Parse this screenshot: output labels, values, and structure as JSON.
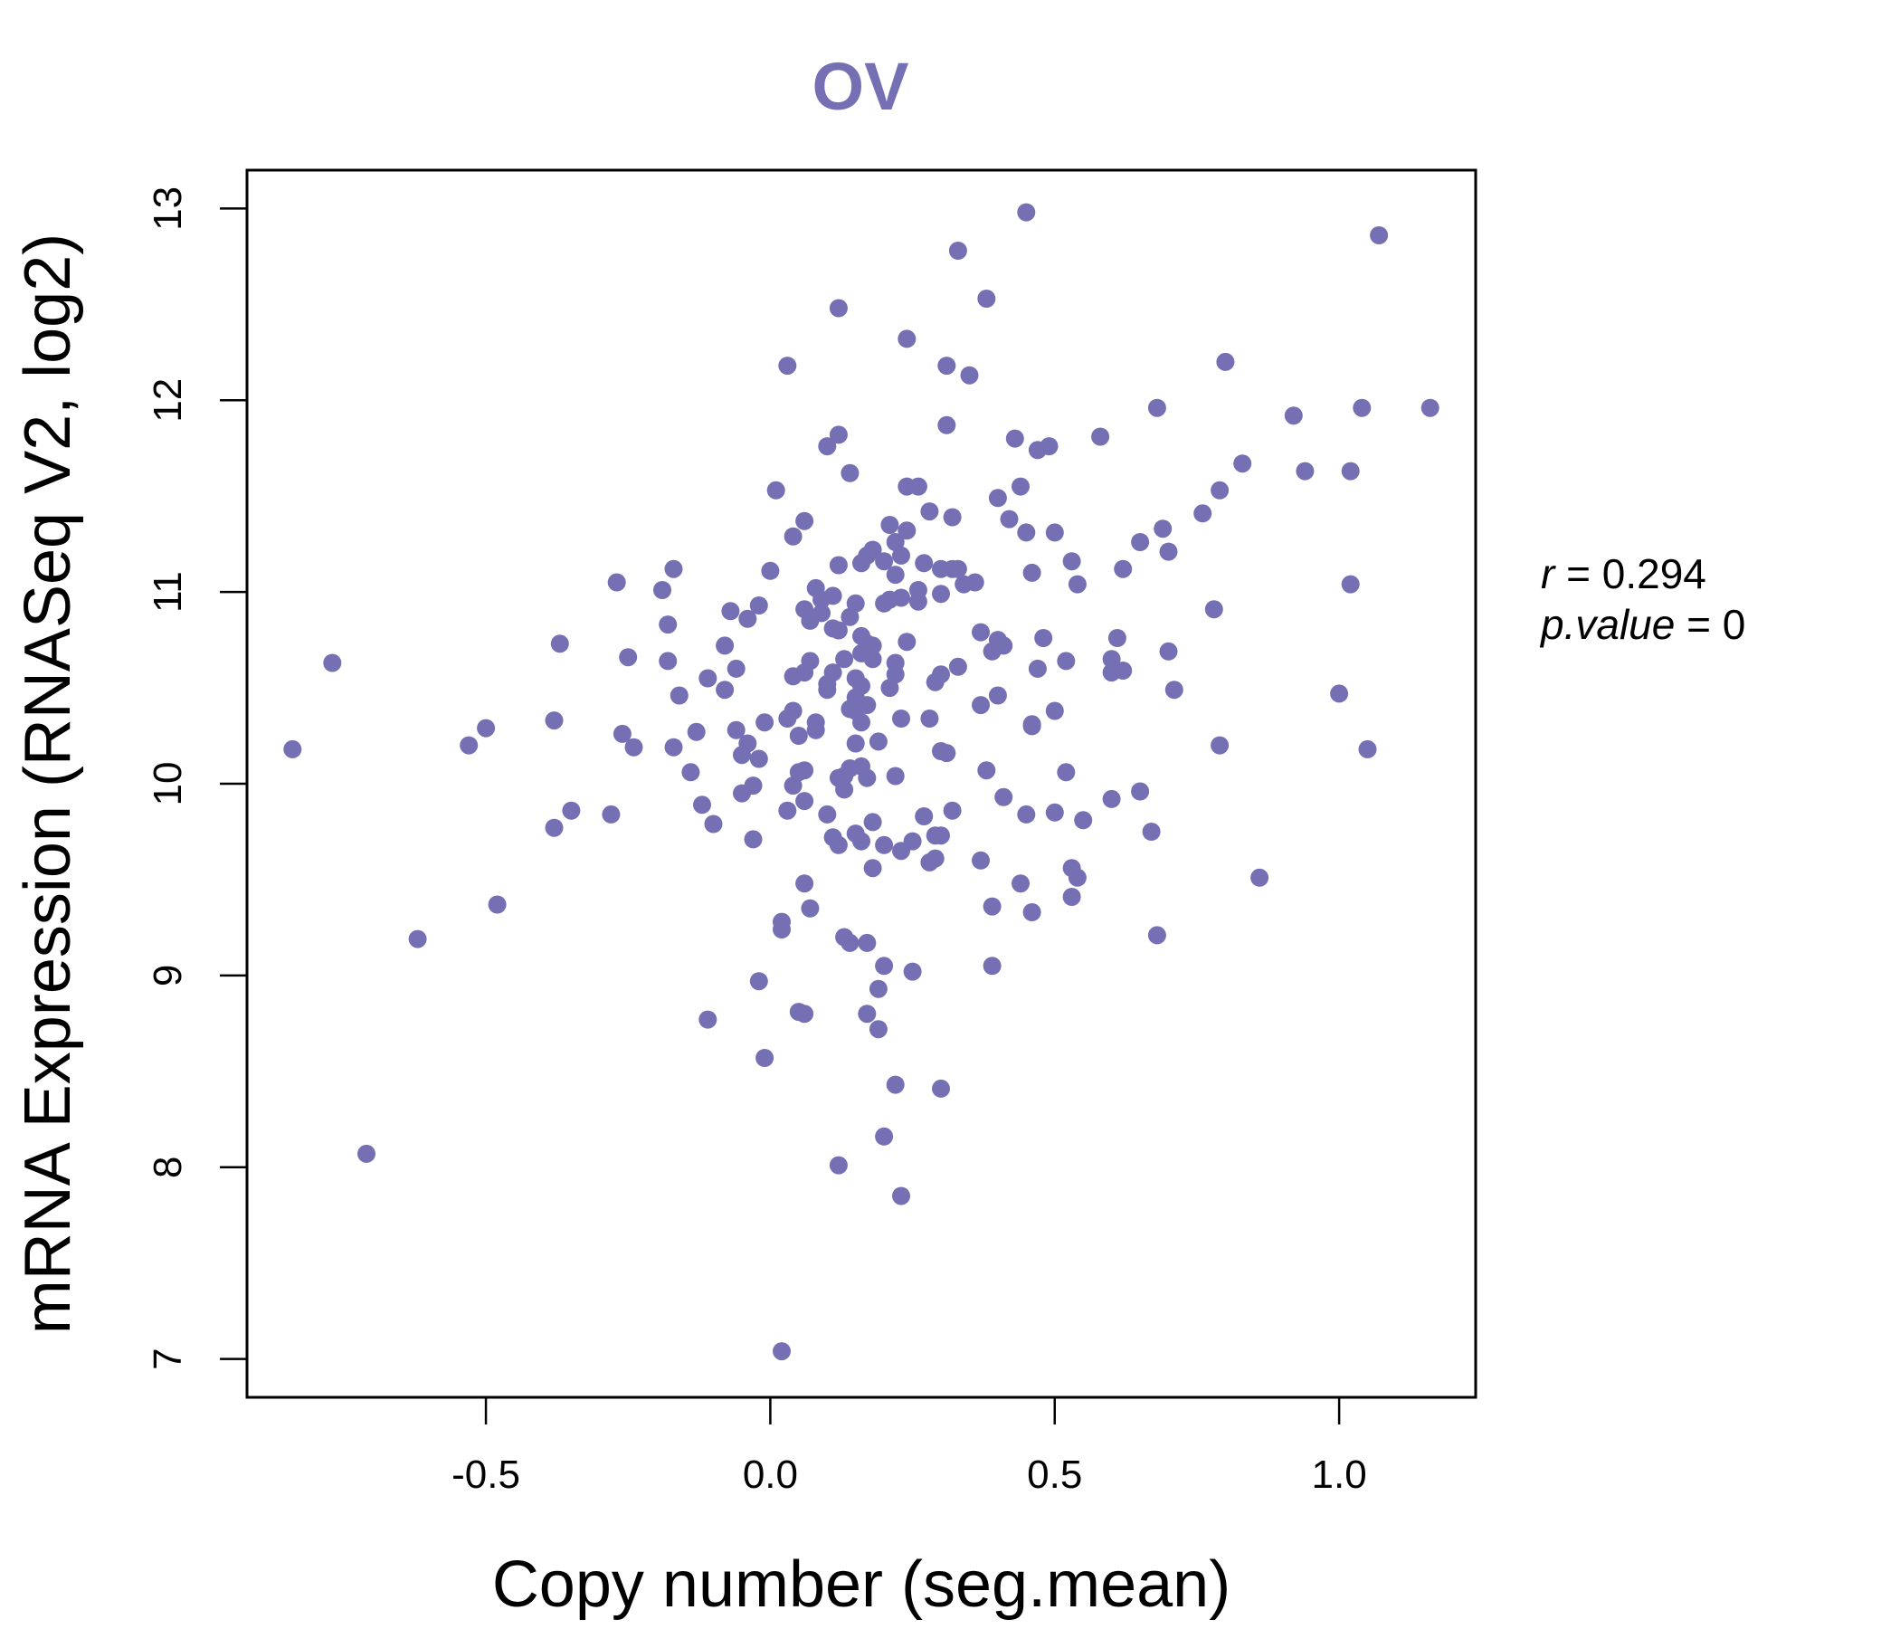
{
  "colors": {
    "point": "#7570b3",
    "title": "#7570b3",
    "axis": "#000000"
  },
  "stats": {
    "r_symbol": "r",
    "r_eq": " = ",
    "r_value": "0.294",
    "p_symbol": "p.value",
    "p_eq": " = ",
    "p_value": "0"
  },
  "chart_data": {
    "type": "scatter",
    "title": "OV",
    "xlabel": "Copy number (seg.mean)",
    "ylabel": "mRNA Expression (RNASeq V2, log2)",
    "xlim": [
      -0.92,
      1.24
    ],
    "ylim": [
      6.8,
      13.2
    ],
    "xticks": [
      -0.5,
      0.0,
      0.5,
      1.0
    ],
    "xtick_labels": [
      "-0.5",
      "0.0",
      "0.5",
      "1.0"
    ],
    "yticks": [
      7,
      8,
      9,
      10,
      11,
      12,
      13
    ],
    "ytick_labels": [
      "7",
      "8",
      "9",
      "10",
      "11",
      "12",
      "13"
    ],
    "grid": false,
    "points": [
      [
        -0.84,
        10.18
      ],
      [
        -0.77,
        10.63
      ],
      [
        -0.71,
        8.07
      ],
      [
        -0.62,
        9.19
      ],
      [
        -0.53,
        10.2
      ],
      [
        -0.5,
        10.29
      ],
      [
        -0.48,
        9.37
      ],
      [
        -0.38,
        10.33
      ],
      [
        -0.37,
        10.73
      ],
      [
        -0.38,
        9.77
      ],
      [
        -0.35,
        9.86
      ],
      [
        -0.28,
        9.84
      ],
      [
        -0.27,
        11.05
      ],
      [
        -0.26,
        10.26
      ],
      [
        -0.25,
        10.66
      ],
      [
        -0.24,
        10.19
      ],
      [
        -0.19,
        11.01
      ],
      [
        -0.18,
        10.64
      ],
      [
        -0.18,
        10.83
      ],
      [
        -0.17,
        11.12
      ],
      [
        -0.17,
        10.19
      ],
      [
        -0.16,
        10.46
      ],
      [
        -0.14,
        10.06
      ],
      [
        -0.13,
        10.27
      ],
      [
        -0.12,
        9.89
      ],
      [
        -0.11,
        8.77
      ],
      [
        -0.11,
        10.55
      ],
      [
        -0.1,
        9.79
      ],
      [
        -0.08,
        10.49
      ],
      [
        -0.08,
        10.72
      ],
      [
        -0.07,
        10.9
      ],
      [
        -0.06,
        10.6
      ],
      [
        -0.06,
        10.28
      ],
      [
        -0.05,
        10.15
      ],
      [
        -0.05,
        9.95
      ],
      [
        -0.04,
        10.86
      ],
      [
        -0.04,
        10.21
      ],
      [
        -0.03,
        9.71
      ],
      [
        -0.03,
        9.99
      ],
      [
        -0.02,
        10.13
      ],
      [
        -0.02,
        10.93
      ],
      [
        -0.02,
        8.97
      ],
      [
        -0.01,
        10.32
      ],
      [
        -0.01,
        8.57
      ],
      [
        0.0,
        11.11
      ],
      [
        0.01,
        11.53
      ],
      [
        0.02,
        9.28
      ],
      [
        0.02,
        9.24
      ],
      [
        0.02,
        7.04
      ],
      [
        0.03,
        10.34
      ],
      [
        0.03,
        12.18
      ],
      [
        0.03,
        9.86
      ],
      [
        0.04,
        10.38
      ],
      [
        0.04,
        9.99
      ],
      [
        0.04,
        11.29
      ],
      [
        0.04,
        10.56
      ],
      [
        0.05,
        10.25
      ],
      [
        0.05,
        10.06
      ],
      [
        0.05,
        8.81
      ],
      [
        0.06,
        10.07
      ],
      [
        0.06,
        11.37
      ],
      [
        0.06,
        10.91
      ],
      [
        0.06,
        10.58
      ],
      [
        0.06,
        9.48
      ],
      [
        0.06,
        9.91
      ],
      [
        0.06,
        8.8
      ],
      [
        0.07,
        9.35
      ],
      [
        0.07,
        10.85
      ],
      [
        0.07,
        10.64
      ],
      [
        0.08,
        10.28
      ],
      [
        0.08,
        11.02
      ],
      [
        0.08,
        10.32
      ],
      [
        0.09,
        10.89
      ],
      [
        0.09,
        10.96
      ],
      [
        0.1,
        10.49
      ],
      [
        0.1,
        10.52
      ],
      [
        0.1,
        9.84
      ],
      [
        0.1,
        11.76
      ],
      [
        0.11,
        9.72
      ],
      [
        0.11,
        10.58
      ],
      [
        0.11,
        10.98
      ],
      [
        0.11,
        10.81
      ],
      [
        0.12,
        9.68
      ],
      [
        0.12,
        10.03
      ],
      [
        0.12,
        10.8
      ],
      [
        0.12,
        11.82
      ],
      [
        0.12,
        12.48
      ],
      [
        0.12,
        11.14
      ],
      [
        0.12,
        8.01
      ],
      [
        0.13,
        10.65
      ],
      [
        0.13,
        9.2
      ],
      [
        0.13,
        10.04
      ],
      [
        0.13,
        9.97
      ],
      [
        0.14,
        10.39
      ],
      [
        0.14,
        11.62
      ],
      [
        0.14,
        10.08
      ],
      [
        0.14,
        10.87
      ],
      [
        0.14,
        9.17
      ],
      [
        0.15,
        10.21
      ],
      [
        0.15,
        10.38
      ],
      [
        0.15,
        9.74
      ],
      [
        0.15,
        10.94
      ],
      [
        0.15,
        10.55
      ],
      [
        0.15,
        10.45
      ],
      [
        0.16,
        10.09
      ],
      [
        0.16,
        11.15
      ],
      [
        0.16,
        9.7
      ],
      [
        0.16,
        10.51
      ],
      [
        0.16,
        10.68
      ],
      [
        0.16,
        10.32
      ],
      [
        0.16,
        10.77
      ],
      [
        0.17,
        10.03
      ],
      [
        0.17,
        11.19
      ],
      [
        0.17,
        10.41
      ],
      [
        0.17,
        9.17
      ],
      [
        0.17,
        10.73
      ],
      [
        0.17,
        8.8
      ],
      [
        0.18,
        10.72
      ],
      [
        0.18,
        9.56
      ],
      [
        0.18,
        9.8
      ],
      [
        0.18,
        11.22
      ],
      [
        0.18,
        10.65
      ],
      [
        0.19,
        8.93
      ],
      [
        0.19,
        10.22
      ],
      [
        0.19,
        8.72
      ],
      [
        0.2,
        9.05
      ],
      [
        0.2,
        10.94
      ],
      [
        0.2,
        11.16
      ],
      [
        0.2,
        8.16
      ],
      [
        0.2,
        9.68
      ],
      [
        0.21,
        10.5
      ],
      [
        0.21,
        11.35
      ],
      [
        0.21,
        10.96
      ],
      [
        0.22,
        10.04
      ],
      [
        0.22,
        10.63
      ],
      [
        0.22,
        11.09
      ],
      [
        0.22,
        10.57
      ],
      [
        0.22,
        11.26
      ],
      [
        0.22,
        8.43
      ],
      [
        0.23,
        10.97
      ],
      [
        0.23,
        7.85
      ],
      [
        0.23,
        10.34
      ],
      [
        0.23,
        11.19
      ],
      [
        0.23,
        9.65
      ],
      [
        0.24,
        12.32
      ],
      [
        0.24,
        11.55
      ],
      [
        0.24,
        11.32
      ],
      [
        0.24,
        10.74
      ],
      [
        0.25,
        9.7
      ],
      [
        0.25,
        9.02
      ],
      [
        0.26,
        11.55
      ],
      [
        0.26,
        10.95
      ],
      [
        0.26,
        11.01
      ],
      [
        0.27,
        11.15
      ],
      [
        0.27,
        9.83
      ],
      [
        0.28,
        10.34
      ],
      [
        0.28,
        11.42
      ],
      [
        0.28,
        9.59
      ],
      [
        0.29,
        9.73
      ],
      [
        0.29,
        10.53
      ],
      [
        0.29,
        9.61
      ],
      [
        0.3,
        8.41
      ],
      [
        0.3,
        10.57
      ],
      [
        0.3,
        9.73
      ],
      [
        0.3,
        10.99
      ],
      [
        0.3,
        11.12
      ],
      [
        0.3,
        10.17
      ],
      [
        0.31,
        12.18
      ],
      [
        0.31,
        11.87
      ],
      [
        0.31,
        10.16
      ],
      [
        0.32,
        11.39
      ],
      [
        0.32,
        11.12
      ],
      [
        0.32,
        9.86
      ],
      [
        0.33,
        12.78
      ],
      [
        0.33,
        11.12
      ],
      [
        0.33,
        10.61
      ],
      [
        0.34,
        11.04
      ],
      [
        0.35,
        12.13
      ],
      [
        0.36,
        11.05
      ],
      [
        0.37,
        9.6
      ],
      [
        0.37,
        10.41
      ],
      [
        0.37,
        10.79
      ],
      [
        0.38,
        10.07
      ],
      [
        0.38,
        12.53
      ],
      [
        0.39,
        10.69
      ],
      [
        0.39,
        9.36
      ],
      [
        0.39,
        9.05
      ],
      [
        0.4,
        10.46
      ],
      [
        0.4,
        10.75
      ],
      [
        0.4,
        11.49
      ],
      [
        0.41,
        9.93
      ],
      [
        0.41,
        10.72
      ],
      [
        0.42,
        11.38
      ],
      [
        0.43,
        11.8
      ],
      [
        0.44,
        11.55
      ],
      [
        0.44,
        9.48
      ],
      [
        0.45,
        9.84
      ],
      [
        0.45,
        11.31
      ],
      [
        0.45,
        12.98
      ],
      [
        0.46,
        10.3
      ],
      [
        0.46,
        11.1
      ],
      [
        0.46,
        10.31
      ],
      [
        0.46,
        9.33
      ],
      [
        0.47,
        11.74
      ],
      [
        0.47,
        10.6
      ],
      [
        0.48,
        10.76
      ],
      [
        0.49,
        11.76
      ],
      [
        0.5,
        10.38
      ],
      [
        0.5,
        9.85
      ],
      [
        0.5,
        11.31
      ],
      [
        0.52,
        10.06
      ],
      [
        0.52,
        10.64
      ],
      [
        0.53,
        11.16
      ],
      [
        0.53,
        9.56
      ],
      [
        0.53,
        9.41
      ],
      [
        0.54,
        9.51
      ],
      [
        0.54,
        11.04
      ],
      [
        0.55,
        9.81
      ],
      [
        0.58,
        11.81
      ],
      [
        0.6,
        10.58
      ],
      [
        0.6,
        10.65
      ],
      [
        0.6,
        9.92
      ],
      [
        0.61,
        10.76
      ],
      [
        0.62,
        11.12
      ],
      [
        0.62,
        10.59
      ],
      [
        0.65,
        9.96
      ],
      [
        0.65,
        11.26
      ],
      [
        0.67,
        9.75
      ],
      [
        0.68,
        9.21
      ],
      [
        0.68,
        11.96
      ],
      [
        0.69,
        11.33
      ],
      [
        0.7,
        11.21
      ],
      [
        0.7,
        10.69
      ],
      [
        0.71,
        10.49
      ],
      [
        0.76,
        11.41
      ],
      [
        0.78,
        10.91
      ],
      [
        0.79,
        10.2
      ],
      [
        0.79,
        11.53
      ],
      [
        0.8,
        12.2
      ],
      [
        0.83,
        11.67
      ],
      [
        0.86,
        9.51
      ],
      [
        0.92,
        11.92
      ],
      [
        0.94,
        11.63
      ],
      [
        1.0,
        10.47
      ],
      [
        1.02,
        11.63
      ],
      [
        1.02,
        11.04
      ],
      [
        1.04,
        11.96
      ],
      [
        1.05,
        10.18
      ],
      [
        1.07,
        12.86
      ],
      [
        1.16,
        11.96
      ]
    ]
  }
}
